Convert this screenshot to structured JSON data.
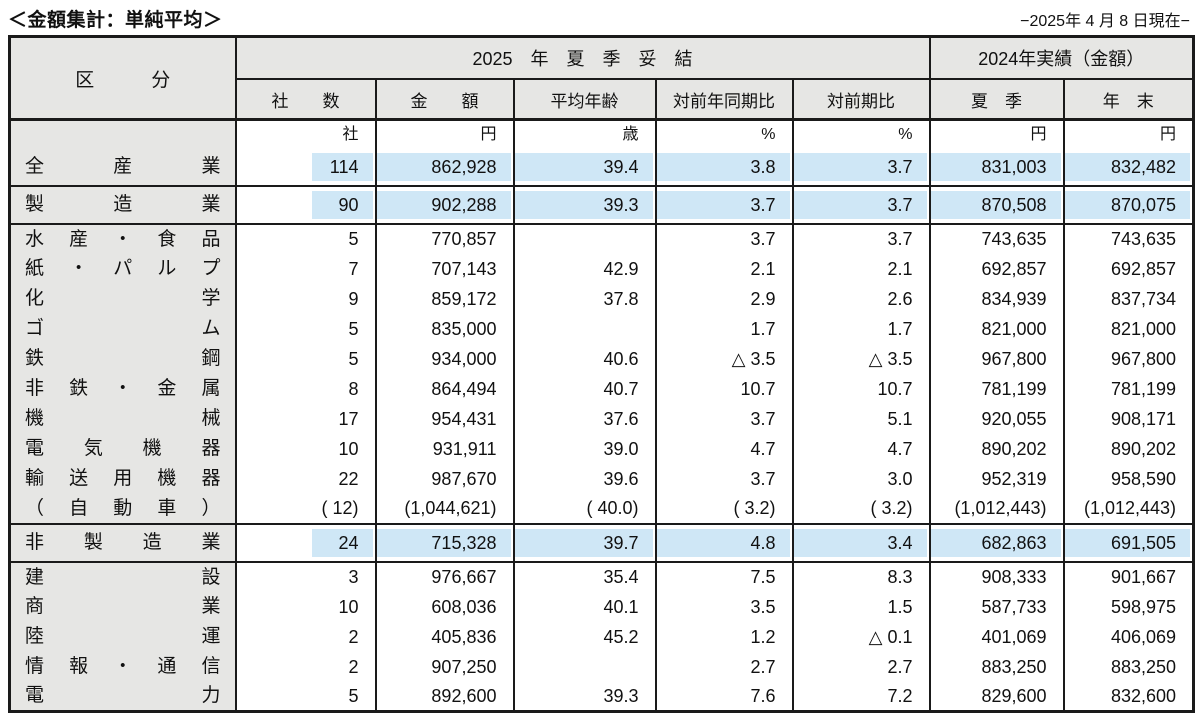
{
  "page": {
    "title": "＜金額集計：単純平均＞",
    "date_note": "−2025年 4 月 8 日現在−"
  },
  "colors": {
    "highlight": "#cfe7f6",
    "header_bg": "#e6e6e4",
    "border": "#1a1a1a"
  },
  "table": {
    "corner_header": "区　　　分",
    "group_headers": {
      "settlement": "2025　年　夏　季　妥　結",
      "actual": "2024年実績（金額）"
    },
    "columns": [
      "社　　数",
      "金　　額",
      "平均年齢",
      "対前年同期比",
      "対前期比",
      "夏　季",
      "年　末"
    ],
    "blocks": [
      {
        "units_row": [
          "社",
          "円",
          "歳",
          "%",
          "%",
          "円",
          "円"
        ],
        "rows": [
          {
            "label": "全産業",
            "size": "lg",
            "highlight": true,
            "values": [
              "114",
              "862,928",
              "39.4",
              "3.8",
              "3.7",
              "831,003",
              "832,482"
            ]
          }
        ]
      },
      {
        "rows": [
          {
            "label": "製造業",
            "size": "lg",
            "highlight": true,
            "values": [
              "90",
              "902,288",
              "39.3",
              "3.7",
              "3.7",
              "870,508",
              "870,075"
            ]
          }
        ]
      },
      {
        "rows": [
          {
            "label": "水産・食品",
            "values": [
              "5",
              "770,857",
              "",
              "3.7",
              "3.7",
              "743,635",
              "743,635"
            ]
          },
          {
            "label": "紙・パルプ",
            "values": [
              "7",
              "707,143",
              "42.9",
              "2.1",
              "2.1",
              "692,857",
              "692,857"
            ]
          },
          {
            "label": "化学",
            "values": [
              "9",
              "859,172",
              "37.8",
              "2.9",
              "2.6",
              "834,939",
              "837,734"
            ]
          },
          {
            "label": "ゴム",
            "values": [
              "5",
              "835,000",
              "",
              "1.7",
              "1.7",
              "821,000",
              "821,000"
            ]
          },
          {
            "label": "鉄鋼",
            "values": [
              "5",
              "934,000",
              "40.6",
              "△ 3.5",
              "△ 3.5",
              "967,800",
              "967,800"
            ]
          },
          {
            "label": "非鉄・金属",
            "values": [
              "8",
              "864,494",
              "40.7",
              "10.7",
              "10.7",
              "781,199",
              "781,199"
            ]
          },
          {
            "label": "機械",
            "values": [
              "17",
              "954,431",
              "37.6",
              "3.7",
              "5.1",
              "920,055",
              "908,171"
            ]
          },
          {
            "label": "電気機器",
            "values": [
              "10",
              "931,911",
              "39.0",
              "4.7",
              "4.7",
              "890,202",
              "890,202"
            ]
          },
          {
            "label": "輸送用機器",
            "values": [
              "22",
              "987,670",
              "39.6",
              "3.7",
              "3.0",
              "952,319",
              "958,590"
            ]
          },
          {
            "label": "（自動車）",
            "values": [
              "( 12)",
              "(1,044,621)",
              "( 40.0)",
              "(  3.2)",
              "(  3.2)",
              "(1,012,443)",
              "(1,012,443)"
            ]
          }
        ]
      },
      {
        "rows": [
          {
            "label": "非製造業",
            "size": "lg",
            "highlight": true,
            "values": [
              "24",
              "715,328",
              "39.7",
              "4.8",
              "3.4",
              "682,863",
              "691,505"
            ]
          }
        ]
      },
      {
        "rows": [
          {
            "label": "建設",
            "values": [
              "3",
              "976,667",
              "35.4",
              "7.5",
              "8.3",
              "908,333",
              "901,667"
            ]
          },
          {
            "label": "商業",
            "values": [
              "10",
              "608,036",
              "40.1",
              "3.5",
              "1.5",
              "587,733",
              "598,975"
            ]
          },
          {
            "label": "陸運",
            "values": [
              "2",
              "405,836",
              "45.2",
              "1.2",
              "△ 0.1",
              "401,069",
              "406,069"
            ]
          },
          {
            "label": "情報・通信",
            "values": [
              "2",
              "907,250",
              "",
              "2.7",
              "2.7",
              "883,250",
              "883,250"
            ]
          },
          {
            "label": "電力",
            "values": [
              "5",
              "892,600",
              "39.3",
              "7.6",
              "7.2",
              "829,600",
              "832,600"
            ]
          }
        ]
      }
    ]
  }
}
